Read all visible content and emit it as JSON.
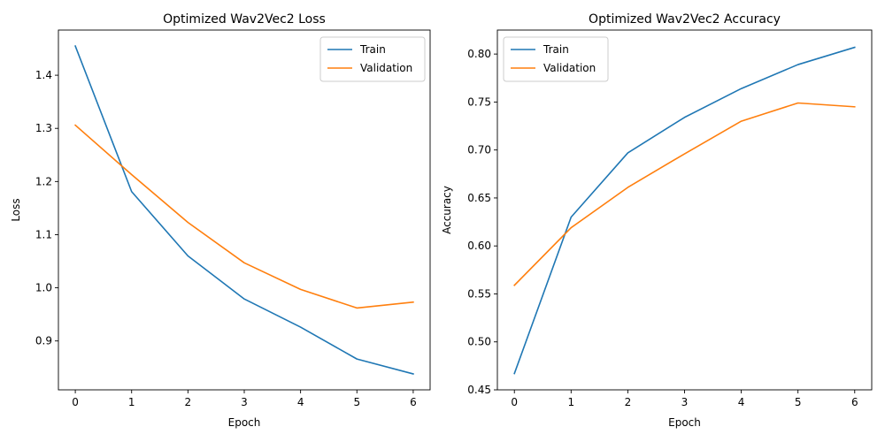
{
  "chart_data": [
    {
      "type": "line",
      "title": "Optimized Wav2Vec2 Loss",
      "xlabel": "Epoch",
      "ylabel": "Loss",
      "x": [
        0,
        1,
        2,
        3,
        4,
        5,
        6
      ],
      "xticks": [
        0,
        1,
        2,
        3,
        4,
        5,
        6
      ],
      "xlim": [
        -0.3,
        6.3
      ],
      "yticks": [
        0.9,
        1.0,
        1.1,
        1.2,
        1.3,
        1.4
      ],
      "yticklabels": [
        "0.9",
        "1.0",
        "1.1",
        "1.2",
        "1.3",
        "1.4"
      ],
      "ylim": [
        0.808,
        1.485
      ],
      "legend": "top-right",
      "grid": false,
      "series": [
        {
          "name": "Train",
          "color": "#1f77b4",
          "values": [
            1.455,
            1.181,
            1.06,
            0.979,
            0.926,
            0.866,
            0.838
          ]
        },
        {
          "name": "Validation",
          "color": "#ff7f0e",
          "values": [
            1.306,
            1.213,
            1.123,
            1.047,
            0.997,
            0.962,
            0.973
          ]
        }
      ]
    },
    {
      "type": "line",
      "title": "Optimized Wav2Vec2 Accuracy",
      "xlabel": "Epoch",
      "ylabel": "Accuracy",
      "x": [
        0,
        1,
        2,
        3,
        4,
        5,
        6
      ],
      "xticks": [
        0,
        1,
        2,
        3,
        4,
        5,
        6
      ],
      "xlim": [
        -0.3,
        6.3
      ],
      "yticks": [
        0.45,
        0.5,
        0.55,
        0.6,
        0.65,
        0.7,
        0.75,
        0.8
      ],
      "yticklabels": [
        "0.45",
        "0.50",
        "0.55",
        "0.60",
        "0.65",
        "0.70",
        "0.75",
        "0.80"
      ],
      "ylim": [
        0.45,
        0.825
      ],
      "legend": "top-left",
      "grid": false,
      "series": [
        {
          "name": "Train",
          "color": "#1f77b4",
          "values": [
            0.467,
            0.63,
            0.697,
            0.734,
            0.764,
            0.789,
            0.807
          ]
        },
        {
          "name": "Validation",
          "color": "#ff7f0e",
          "values": [
            0.559,
            0.619,
            0.661,
            0.696,
            0.73,
            0.749,
            0.745
          ]
        }
      ]
    }
  ]
}
